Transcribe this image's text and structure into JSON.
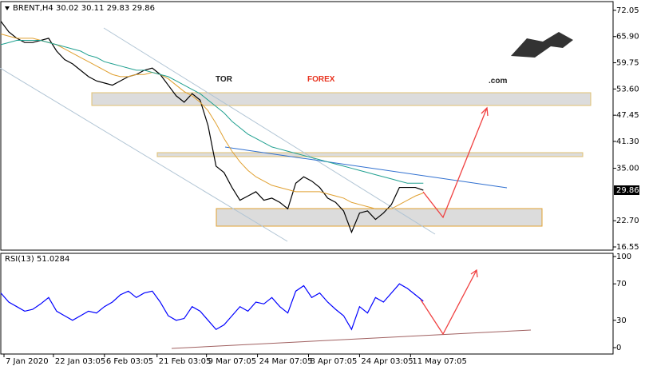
{
  "chart_data": [
    {
      "type": "line",
      "title": "BRENT,H4  30.02 30.11 29.83 29.86",
      "x": [
        0,
        5,
        10,
        15,
        20,
        25,
        30,
        35,
        40,
        45,
        50,
        55,
        60,
        65,
        70,
        75,
        80,
        85,
        90,
        95,
        100,
        105,
        110,
        115,
        120,
        125,
        130,
        135,
        140,
        145,
        150,
        155,
        160,
        165,
        170,
        175,
        180,
        185,
        190,
        195,
        200,
        205,
        210,
        215,
        220,
        225,
        230,
        235,
        240,
        245,
        250,
        255,
        260,
        265
      ],
      "series": [
        {
          "color": "#000000",
          "values": [
            69.5,
            67,
            65.5,
            64.5,
            64.5,
            65,
            65.5,
            62.5,
            60.5,
            59.5,
            58,
            56.5,
            55.5,
            55,
            54.5,
            55.5,
            56.5,
            57,
            58,
            58.5,
            57,
            54.5,
            52,
            50.5,
            52.5,
            51,
            45,
            35.5,
            34,
            30.5,
            27.5,
            28.5,
            29.5,
            27.5,
            28,
            27,
            25.5,
            31.5,
            33,
            32,
            30.5,
            28,
            27,
            25,
            20,
            24.5,
            25,
            23,
            24.5,
            26.5,
            30.5,
            30.5,
            30.5,
            29.86
          ]
        },
        {
          "color": "#e0a030",
          "values": [
            66.5,
            66,
            65.5,
            65.5,
            65.5,
            65,
            64.5,
            64,
            63,
            62,
            61,
            60,
            59,
            58,
            57,
            56.5,
            56.5,
            57,
            57,
            57.5,
            57,
            56,
            54.5,
            53,
            52,
            50.5,
            48.5,
            45.5,
            42,
            39,
            36.5,
            34.5,
            33,
            32,
            31,
            30.5,
            30,
            29.5,
            29.5,
            29.5,
            29.5,
            29,
            28.5,
            28,
            27,
            26.5,
            26,
            25.5,
            25.5,
            25.5,
            26.5,
            27.5,
            28.5,
            29.2
          ]
        },
        {
          "color": "#20a090",
          "values": [
            64,
            64.5,
            65,
            65,
            65,
            65,
            64.5,
            64,
            63.5,
            63,
            62.5,
            61.5,
            61,
            60,
            59.5,
            59,
            58.5,
            58,
            58,
            57.5,
            57,
            56.5,
            55.5,
            54.5,
            53.5,
            52.5,
            51,
            49.5,
            48,
            46,
            44.5,
            43,
            42,
            41,
            40,
            39.5,
            39,
            38.5,
            38,
            37.5,
            37,
            36.5,
            36,
            35.5,
            35,
            34.5,
            34,
            33.5,
            33,
            32.5,
            32,
            31.5,
            31.5,
            31.5
          ]
        }
      ],
      "xlim": [
        0,
        384
      ],
      "ylim": [
        15.8,
        74.1
      ],
      "yticks": [
        72.05,
        {
          "value": 65.9,
          "label": "65.90"
        },
        59.75,
        {
          "value": 53.6,
          "label": "53.60"
        },
        47.45,
        {
          "value": 41.3,
          "label": "41.30"
        },
        {
          "value": 35,
          "label": "35.00"
        },
        {
          "value": 22.7,
          "label": "22.70"
        },
        16.55
      ],
      "last_price": {
        "value": 29.86,
        "label": "29.86"
      }
    },
    {
      "type": "line",
      "title": "RSI(13) 51.0284",
      "x": [
        0,
        5,
        10,
        15,
        20,
        25,
        30,
        35,
        40,
        45,
        50,
        55,
        60,
        65,
        70,
        75,
        80,
        85,
        90,
        95,
        100,
        105,
        110,
        115,
        120,
        125,
        130,
        135,
        140,
        145,
        150,
        155,
        160,
        165,
        170,
        175,
        180,
        185,
        190,
        195,
        200,
        205,
        210,
        215,
        220,
        225,
        230,
        235,
        240,
        245,
        250,
        255,
        260,
        265
      ],
      "series": [
        {
          "color": "#0000ff",
          "values": [
            60,
            50,
            45,
            40,
            42,
            48,
            55,
            40,
            35,
            30,
            35,
            40,
            38,
            45,
            50,
            58,
            62,
            55,
            60,
            62,
            50,
            35,
            30,
            32,
            45,
            40,
            30,
            20,
            25,
            35,
            45,
            40,
            50,
            48,
            55,
            45,
            38,
            62,
            68,
            55,
            60,
            50,
            42,
            35,
            20,
            45,
            38,
            55,
            50,
            60,
            70,
            65,
            58,
            51
          ]
        }
      ],
      "xlim": [
        0,
        384
      ],
      "ylim": [
        -7,
        103.5
      ],
      "yticks": [
        100,
        70,
        30,
        0
      ],
      "xticks": [
        {
          "value": 2,
          "label": "7 Jan 2020"
        },
        {
          "value": 33,
          "label": "22 Jan 03:05"
        },
        {
          "value": 65,
          "label": "6 Feb 03:05"
        },
        {
          "value": 98,
          "label": "21 Feb 03:05"
        },
        {
          "value": 129,
          "label": "9 Mar 07:05"
        },
        {
          "value": 161,
          "label": "24 Mar 07:05"
        },
        {
          "value": 193,
          "label": "8 Apr 07:05"
        },
        {
          "value": 225,
          "label": "24 Apr 03:05"
        },
        {
          "value": 257,
          "label": "11 May 07:05"
        }
      ]
    }
  ],
  "watermark": {
    "first": "TOR",
    "second": "FOREX",
    "suffix": ".com"
  }
}
